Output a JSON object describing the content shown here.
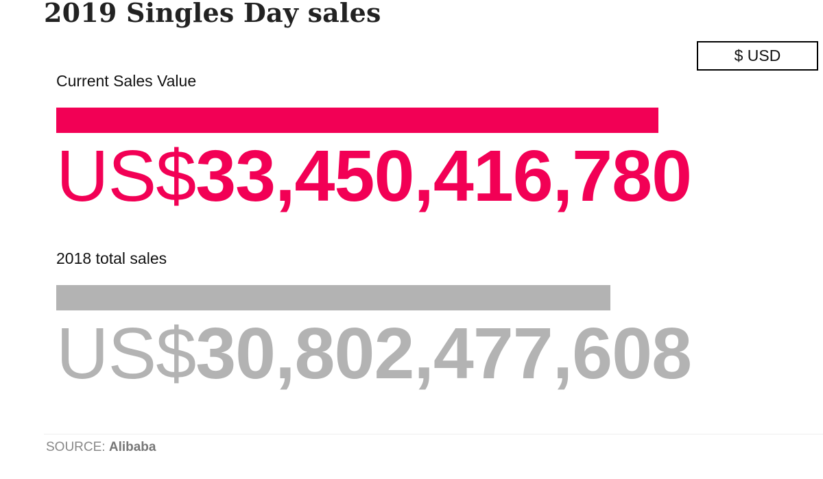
{
  "chart_data": {
    "type": "bar",
    "orientation": "horizontal",
    "title": "2019 Singles Day sales",
    "unit_toggle_label": "$ USD",
    "currency_prefix": "US$",
    "series": [
      {
        "name": "Current Sales Value",
        "value": 33450416780,
        "display_value": "33,450,416,780",
        "color": "#f20055"
      },
      {
        "name": "2018 total sales",
        "value": 30802477608,
        "display_value": "30,802,477,608",
        "color": "#b3b3b3"
      }
    ],
    "scale_max": 36200000000,
    "source": {
      "label": "SOURCE:",
      "name": "Alibaba"
    }
  }
}
